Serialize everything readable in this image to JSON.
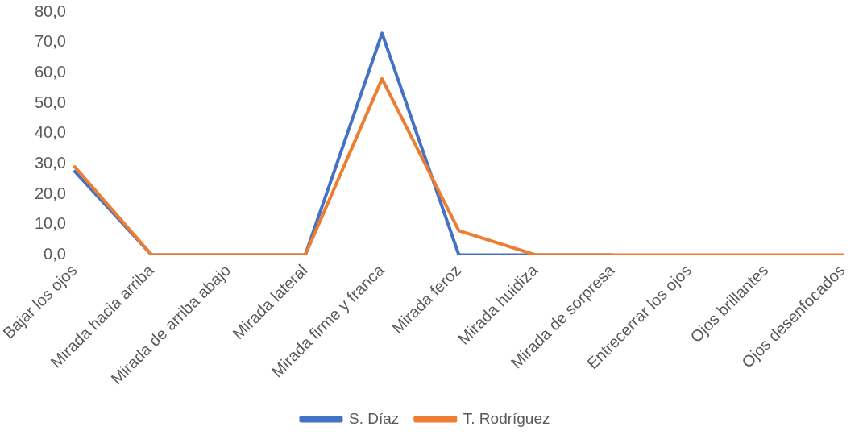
{
  "chart_data": {
    "type": "line",
    "categories": [
      "Bajar los ojos",
      "Mirada hacia arriba",
      "Mirada de arriba abajo",
      "Mirada lateral",
      "Mirada firme y franca",
      "Mirada feroz",
      "Mirada huidiza",
      "Mirada de sorpresa",
      "Entrecerrar los ojos",
      "Ojos brillantes",
      "Ojos desenfocados"
    ],
    "series": [
      {
        "name": "S. Díaz",
        "color": "#4472c4",
        "values": [
          27.5,
          0,
          0,
          0,
          73,
          0,
          0,
          0,
          null,
          null,
          null
        ]
      },
      {
        "name": "T. Rodríguez",
        "color": "#ed7d31",
        "values": [
          29,
          0,
          0,
          0,
          58,
          8,
          0,
          0,
          0,
          0,
          0
        ]
      }
    ],
    "ylim": [
      0,
      80
    ],
    "yticks": [
      {
        "value": 0,
        "label": "0,0"
      },
      {
        "value": 10,
        "label": "10,0"
      },
      {
        "value": 20,
        "label": "20,0"
      },
      {
        "value": 30,
        "label": "30,0"
      },
      {
        "value": 40,
        "label": "40,0"
      },
      {
        "value": 50,
        "label": "50,0"
      },
      {
        "value": 60,
        "label": "60,0"
      },
      {
        "value": 70,
        "label": "70,0"
      },
      {
        "value": 80,
        "label": "80,0"
      }
    ],
    "grid": false,
    "legend": "bottom",
    "marker": "none",
    "line_style": "solid"
  }
}
